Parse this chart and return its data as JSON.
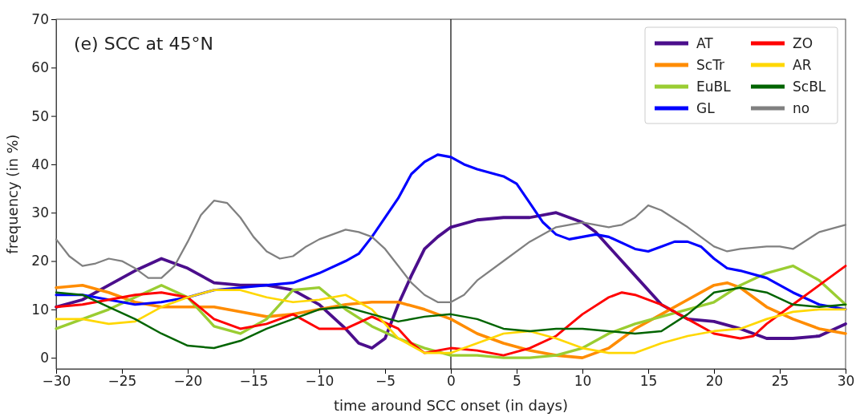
{
  "chart_data": {
    "type": "line",
    "title": "(e) SCC at 45°N",
    "xlabel": "time around SCC onset (in days)",
    "ylabel": "frequency (in %)",
    "xlim": [
      -30,
      30
    ],
    "ylim": [
      -2.3,
      70
    ],
    "xticks": [
      {
        "value": -30,
        "label": "−30"
      },
      {
        "value": -25,
        "label": "−25"
      },
      {
        "value": -20,
        "label": "−20"
      },
      {
        "value": -15,
        "label": "−15"
      },
      {
        "value": -10,
        "label": "−10"
      },
      {
        "value": -5,
        "label": "−5"
      },
      0,
      5,
      10,
      15,
      20,
      25,
      30
    ],
    "yticks": [
      0,
      10,
      20,
      30,
      40,
      50,
      60,
      70
    ],
    "grid": false,
    "legend": "top right",
    "marker": "none",
    "line_style": "solid",
    "ref_lines": [
      {
        "axis": "x",
        "value": 0,
        "color": "#000000"
      }
    ],
    "series": [
      {
        "name": "AT",
        "color": "#4b0e8c",
        "x": [
          -30,
          -28,
          -26,
          -24,
          -22,
          -20,
          -18,
          -16,
          -14,
          -12,
          -10,
          -8,
          -7,
          -6,
          -5,
          -4,
          -3,
          -2,
          -1,
          0,
          2,
          4,
          6,
          8,
          10,
          11,
          12,
          14,
          16,
          18,
          20,
          22,
          24,
          26,
          28,
          30
        ],
        "values": [
          10.5,
          12,
          15,
          18,
          20.5,
          18.5,
          15.5,
          15,
          15,
          14,
          11,
          6,
          3,
          2,
          4,
          11,
          17,
          22.5,
          25,
          27,
          28.5,
          29,
          29,
          30,
          28,
          26,
          23,
          17,
          11,
          8,
          7.5,
          6,
          4,
          4,
          4.5,
          7
        ]
      },
      {
        "name": "ScTr",
        "color": "#ff8c00",
        "x": [
          -30,
          -28,
          -26,
          -24,
          -22,
          -20,
          -18,
          -16,
          -14,
          -12,
          -10,
          -8,
          -6,
          -4,
          -2,
          0,
          2,
          4,
          6,
          8,
          10,
          12,
          14,
          16,
          18,
          20,
          21,
          22,
          24,
          26,
          28,
          30
        ],
        "values": [
          14.5,
          15,
          13.5,
          11.5,
          10.5,
          10.5,
          10.5,
          9.5,
          8.5,
          9,
          10,
          11,
          11.5,
          11.5,
          10,
          8,
          5,
          3,
          1.5,
          0.5,
          0,
          2,
          6,
          9,
          12,
          15,
          15.5,
          14.5,
          10.5,
          8,
          6,
          5
        ]
      },
      {
        "name": "EuBL",
        "color": "#9acd32",
        "x": [
          -30,
          -28,
          -26,
          -24,
          -22,
          -20,
          -18,
          -16,
          -14,
          -12,
          -10,
          -8,
          -6,
          -4,
          -2,
          0,
          2,
          4,
          6,
          8,
          10,
          12,
          14,
          16,
          18,
          20,
          22,
          24,
          26,
          28,
          30
        ],
        "values": [
          6,
          8,
          10,
          12.5,
          15,
          12.5,
          6.5,
          5,
          8,
          14,
          14.5,
          10,
          6.5,
          4,
          2,
          0.5,
          0.5,
          0,
          0,
          0.5,
          2,
          5,
          7,
          8.5,
          10,
          11.5,
          15,
          17.5,
          19,
          16,
          11
        ]
      },
      {
        "name": "GL",
        "color": "#0000ff",
        "x": [
          -30,
          -28,
          -26,
          -24,
          -22,
          -20,
          -18,
          -16,
          -14,
          -12,
          -10,
          -8,
          -7,
          -6,
          -4,
          -3,
          -2,
          -1,
          0,
          1,
          2,
          4,
          5,
          6,
          7,
          8,
          9,
          10,
          11,
          12,
          14,
          15,
          16,
          17,
          18,
          19,
          20,
          21,
          22,
          24,
          26,
          28,
          30
        ],
        "values": [
          13,
          13,
          12,
          11,
          11.5,
          12.5,
          14,
          14.5,
          15,
          15.5,
          17.5,
          20,
          21.5,
          25,
          33,
          38,
          40.5,
          42,
          41.5,
          40,
          39,
          37.5,
          36,
          32,
          28,
          25.5,
          24.5,
          25,
          25.5,
          25,
          22.5,
          22,
          23,
          24,
          24,
          23,
          20.5,
          18.5,
          18,
          16.5,
          13.5,
          11,
          10
        ]
      },
      {
        "name": "ZO",
        "color": "#ff0000",
        "x": [
          -30,
          -28,
          -26,
          -24,
          -22,
          -20,
          -18,
          -16,
          -14,
          -12,
          -10,
          -8,
          -6,
          -4,
          -3,
          -2,
          -1,
          0,
          2,
          4,
          6,
          8,
          10,
          12,
          13,
          14,
          16,
          18,
          20,
          22,
          23,
          24,
          26,
          28,
          30
        ],
        "values": [
          10.5,
          11,
          12,
          13,
          13.5,
          12.5,
          8,
          6,
          7,
          9,
          6,
          6,
          8.5,
          6,
          3,
          1,
          1.5,
          2,
          1.5,
          0.5,
          2,
          4.5,
          9,
          12.5,
          13.5,
          13,
          11,
          8,
          5,
          4,
          4.5,
          7,
          11,
          15,
          19
        ]
      },
      {
        "name": "AR",
        "color": "#ffd700",
        "x": [
          -30,
          -28,
          -26,
          -24,
          -22,
          -20,
          -18,
          -16,
          -14,
          -12,
          -10,
          -8,
          -6,
          -4,
          -2,
          0,
          2,
          4,
          6,
          8,
          10,
          12,
          14,
          16,
          18,
          20,
          22,
          24,
          26,
          28,
          30
        ],
        "values": [
          8,
          8,
          7,
          7.5,
          10.5,
          12.5,
          14,
          14,
          12.5,
          11.5,
          12,
          13,
          10,
          4,
          1,
          1,
          3,
          5,
          5.5,
          4,
          2,
          1,
          1,
          3,
          4.5,
          5.5,
          6,
          8,
          9.5,
          10,
          10
        ]
      },
      {
        "name": "ScBL",
        "color": "#006400",
        "x": [
          -30,
          -28,
          -26,
          -24,
          -22,
          -20,
          -18,
          -16,
          -14,
          -12,
          -10,
          -8,
          -6,
          -4,
          -2,
          0,
          2,
          4,
          6,
          8,
          10,
          12,
          14,
          16,
          18,
          20,
          22,
          24,
          26,
          28,
          30
        ],
        "values": [
          13.5,
          13,
          10.5,
          8,
          5,
          2.5,
          2,
          3.5,
          6,
          8,
          10,
          10.5,
          9,
          7.5,
          8.5,
          9,
          8,
          6,
          5.5,
          6,
          6,
          5.5,
          5,
          5.5,
          9,
          13.5,
          14.5,
          13.5,
          11,
          10.5,
          11
        ]
      },
      {
        "name": "no",
        "color": "#808080",
        "x": [
          -30,
          -29,
          -28,
          -27,
          -26,
          -25,
          -24,
          -23,
          -22,
          -21,
          -20,
          -19,
          -18,
          -17,
          -16,
          -15,
          -14,
          -13,
          -12,
          -11,
          -10,
          -9,
          -8,
          -7,
          -6,
          -5,
          -4,
          -3,
          -2,
          -1,
          0,
          1,
          2,
          4,
          6,
          8,
          10,
          12,
          13,
          14,
          15,
          16,
          18,
          20,
          21,
          22,
          24,
          25,
          26,
          28,
          30
        ],
        "values": [
          24.5,
          21,
          19,
          19.5,
          20.5,
          20,
          18.5,
          16.5,
          16.5,
          19,
          24,
          29.5,
          32.5,
          32,
          29,
          25,
          22,
          20.5,
          21,
          23,
          24.5,
          25.5,
          26.5,
          26,
          25,
          22.5,
          19,
          15.5,
          13,
          11.5,
          11.5,
          13,
          16,
          20,
          24,
          27,
          28,
          27,
          27.5,
          29,
          31.5,
          30.5,
          27,
          23,
          22,
          22.5,
          23,
          23,
          22.5,
          26,
          27.5
        ]
      }
    ]
  }
}
